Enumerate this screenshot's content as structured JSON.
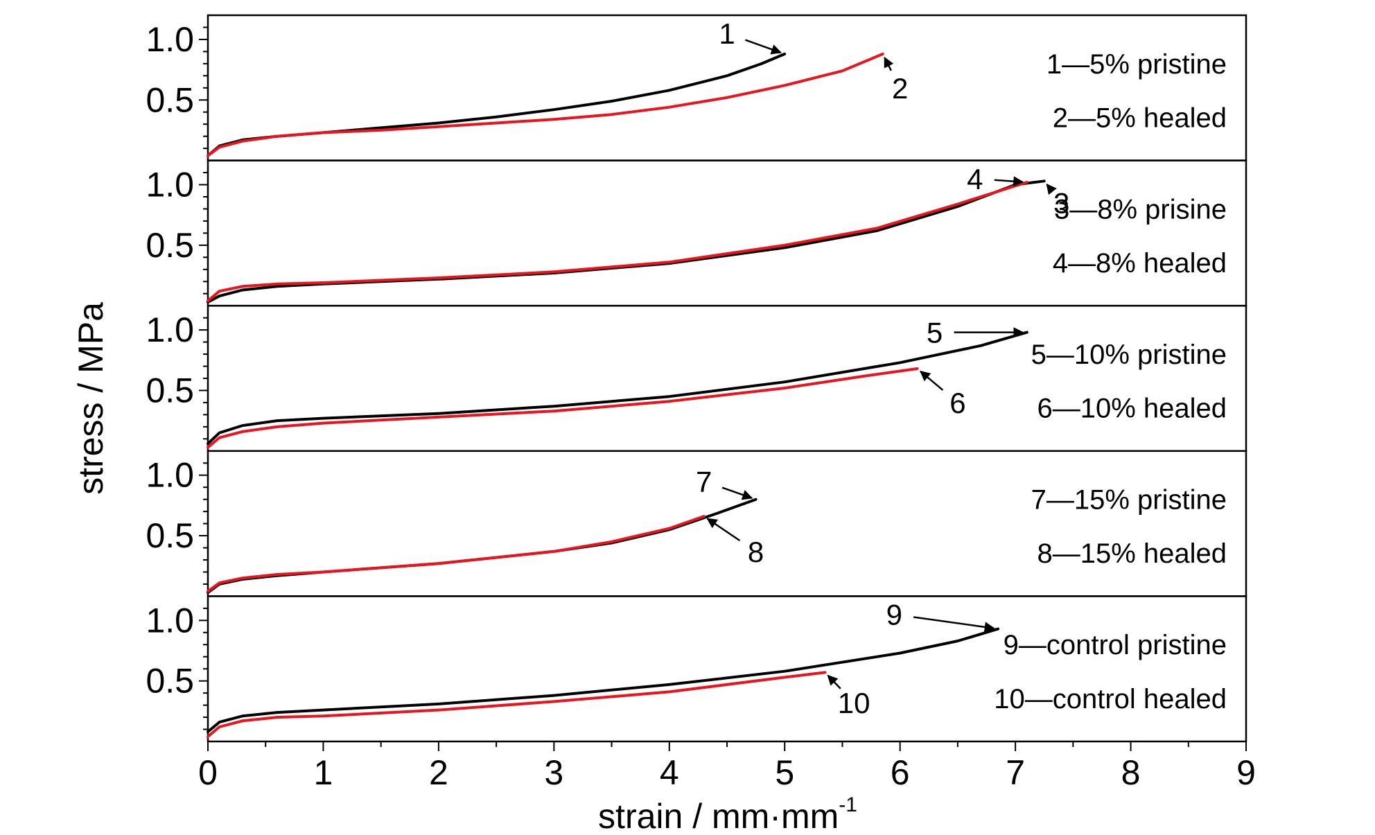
{
  "chart_data": {
    "type": "line",
    "xlabel_main": "strain / mm·mm",
    "xlabel_sup": "-1",
    "ylabel": "stress / MPa",
    "xlim": [
      0,
      9
    ],
    "x_ticks": [
      "0",
      "1",
      "2",
      "3",
      "4",
      "5",
      "6",
      "7",
      "8",
      "9"
    ],
    "ylim": [
      0,
      1.2
    ],
    "y_ticks": [
      "1.0",
      "0.5"
    ],
    "colors": {
      "pristine": "#000000",
      "healed": "#e8141e"
    },
    "panels": [
      {
        "legend": [
          "1—5% pristine",
          "2—5% healed"
        ],
        "series": [
          {
            "label": "1",
            "role": "pristine",
            "points": [
              [
                0,
                0.04
              ],
              [
                0.1,
                0.12
              ],
              [
                0.3,
                0.17
              ],
              [
                0.6,
                0.2
              ],
              [
                1,
                0.23
              ],
              [
                1.5,
                0.27
              ],
              [
                2,
                0.31
              ],
              [
                2.5,
                0.36
              ],
              [
                3,
                0.42
              ],
              [
                3.5,
                0.49
              ],
              [
                4,
                0.58
              ],
              [
                4.5,
                0.7
              ],
              [
                4.8,
                0.8
              ],
              [
                5,
                0.88
              ]
            ],
            "label_x": 4.5,
            "label_y": 1.05
          },
          {
            "label": "2",
            "role": "healed",
            "points": [
              [
                0,
                0.04
              ],
              [
                0.1,
                0.11
              ],
              [
                0.3,
                0.16
              ],
              [
                0.6,
                0.2
              ],
              [
                1,
                0.23
              ],
              [
                1.5,
                0.25
              ],
              [
                2,
                0.28
              ],
              [
                2.5,
                0.31
              ],
              [
                3,
                0.34
              ],
              [
                3.5,
                0.38
              ],
              [
                4,
                0.44
              ],
              [
                4.5,
                0.52
              ],
              [
                5,
                0.62
              ],
              [
                5.5,
                0.74
              ],
              [
                5.85,
                0.88
              ]
            ],
            "label_x": 6.0,
            "label_y": 0.6
          }
        ]
      },
      {
        "legend": [
          "3—8% prisine",
          "4—8% healed"
        ],
        "series": [
          {
            "label": "3",
            "role": "pristine",
            "points": [
              [
                0,
                0.03
              ],
              [
                0.1,
                0.08
              ],
              [
                0.3,
                0.13
              ],
              [
                0.6,
                0.16
              ],
              [
                1,
                0.18
              ],
              [
                2,
                0.22
              ],
              [
                3,
                0.27
              ],
              [
                4,
                0.35
              ],
              [
                5,
                0.48
              ],
              [
                5.8,
                0.62
              ],
              [
                6.5,
                0.82
              ],
              [
                7,
                1.0
              ],
              [
                7.25,
                1.03
              ]
            ],
            "label_x": 7.4,
            "label_y": 0.85
          },
          {
            "label": "4",
            "role": "healed",
            "points": [
              [
                0,
                0.04
              ],
              [
                0.1,
                0.12
              ],
              [
                0.3,
                0.16
              ],
              [
                0.6,
                0.18
              ],
              [
                1,
                0.19
              ],
              [
                2,
                0.23
              ],
              [
                3,
                0.28
              ],
              [
                4,
                0.36
              ],
              [
                5,
                0.5
              ],
              [
                5.8,
                0.64
              ],
              [
                6.5,
                0.84
              ],
              [
                7.1,
                1.02
              ]
            ],
            "label_x": 6.65,
            "label_y": 1.05
          }
        ]
      },
      {
        "legend": [
          "5—10% pristine",
          "6—10% healed"
        ],
        "series": [
          {
            "label": "5",
            "role": "pristine",
            "points": [
              [
                0,
                0.06
              ],
              [
                0.1,
                0.15
              ],
              [
                0.3,
                0.21
              ],
              [
                0.6,
                0.25
              ],
              [
                1,
                0.27
              ],
              [
                2,
                0.31
              ],
              [
                3,
                0.37
              ],
              [
                4,
                0.45
              ],
              [
                5,
                0.57
              ],
              [
                6,
                0.73
              ],
              [
                6.7,
                0.87
              ],
              [
                7.1,
                0.98
              ]
            ],
            "label_x": 6.3,
            "label_y": 0.98
          },
          {
            "label": "6",
            "role": "healed",
            "points": [
              [
                0,
                0.03
              ],
              [
                0.1,
                0.11
              ],
              [
                0.3,
                0.16
              ],
              [
                0.6,
                0.2
              ],
              [
                1,
                0.23
              ],
              [
                2,
                0.28
              ],
              [
                3,
                0.33
              ],
              [
                4,
                0.41
              ],
              [
                5,
                0.52
              ],
              [
                5.7,
                0.62
              ],
              [
                6.15,
                0.68
              ]
            ],
            "label_x": 6.5,
            "label_y": 0.4
          }
        ]
      },
      {
        "legend": [
          "7—15% pristine",
          "8—15% healed"
        ],
        "series": [
          {
            "label": "7",
            "role": "pristine",
            "points": [
              [
                0,
                0.03
              ],
              [
                0.1,
                0.1
              ],
              [
                0.3,
                0.14
              ],
              [
                0.6,
                0.17
              ],
              [
                1,
                0.2
              ],
              [
                2,
                0.27
              ],
              [
                3,
                0.37
              ],
              [
                3.5,
                0.44
              ],
              [
                4,
                0.55
              ],
              [
                4.4,
                0.68
              ],
              [
                4.75,
                0.8
              ]
            ],
            "label_x": 4.3,
            "label_y": 0.95
          },
          {
            "label": "8",
            "role": "healed",
            "points": [
              [
                0,
                0.04
              ],
              [
                0.1,
                0.11
              ],
              [
                0.3,
                0.15
              ],
              [
                0.6,
                0.18
              ],
              [
                1,
                0.2
              ],
              [
                2,
                0.27
              ],
              [
                3,
                0.37
              ],
              [
                3.5,
                0.45
              ],
              [
                4,
                0.56
              ],
              [
                4.3,
                0.66
              ]
            ],
            "label_x": 4.75,
            "label_y": 0.37
          }
        ]
      },
      {
        "legend": [
          "9—control pristine",
          "10—control healed"
        ],
        "series": [
          {
            "label": "9",
            "role": "pristine",
            "points": [
              [
                0,
                0.08
              ],
              [
                0.1,
                0.16
              ],
              [
                0.3,
                0.21
              ],
              [
                0.6,
                0.24
              ],
              [
                1,
                0.26
              ],
              [
                2,
                0.31
              ],
              [
                3,
                0.38
              ],
              [
                4,
                0.47
              ],
              [
                5,
                0.58
              ],
              [
                6,
                0.73
              ],
              [
                6.5,
                0.83
              ],
              [
                6.85,
                0.93
              ]
            ],
            "label_x": 5.95,
            "label_y": 1.05
          },
          {
            "label": "10",
            "role": "healed",
            "points": [
              [
                0,
                0.04
              ],
              [
                0.1,
                0.12
              ],
              [
                0.3,
                0.17
              ],
              [
                0.6,
                0.2
              ],
              [
                1,
                0.21
              ],
              [
                2,
                0.26
              ],
              [
                3,
                0.33
              ],
              [
                4,
                0.41
              ],
              [
                5,
                0.53
              ],
              [
                5.35,
                0.57
              ]
            ],
            "label_x": 5.6,
            "label_y": 0.32
          }
        ]
      }
    ]
  }
}
